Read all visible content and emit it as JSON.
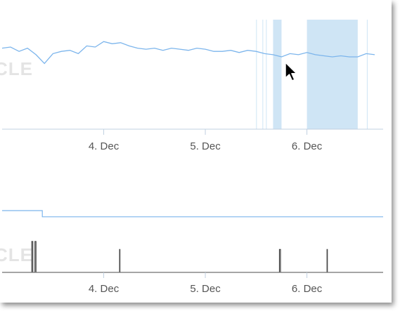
{
  "chart_data": [
    {
      "type": "line",
      "title": "",
      "xlabel": "",
      "ylabel": "",
      "x_tick_labels": [
        "4. Dec",
        "5. Dec",
        "6. Dec"
      ],
      "x_ticks_date": [
        "2023-12-04",
        "2023-12-05",
        "2023-12-06"
      ],
      "xlim_date": [
        "2023-12-03",
        "2023-12-06T18:00"
      ],
      "ylim": [
        0,
        100
      ],
      "grid": false,
      "line_color": "#7cb5ec",
      "band_color": "#cfe5f5",
      "watermark": "CLE",
      "highlight_bands": [
        [
          "2023-12-05T12:00",
          "2023-12-05T12:05"
        ],
        [
          "2023-12-05T13:30",
          "2023-12-05T13:35"
        ],
        [
          "2023-12-05T14:20",
          "2023-12-05T14:25"
        ],
        [
          "2023-12-05T16:00",
          "2023-12-05T18:00"
        ],
        [
          "2023-12-06T00:00",
          "2023-12-06T12:00"
        ],
        [
          "2023-12-06T14:10",
          "2023-12-06T14:15"
        ]
      ],
      "series": [
        {
          "values": [
            [
              "2023-12-03T00:00",
              74
            ],
            [
              "2023-12-03T02:00",
              75
            ],
            [
              "2023-12-03T04:00",
              71
            ],
            [
              "2023-12-03T06:00",
              74
            ],
            [
              "2023-12-03T08:00",
              68
            ],
            [
              "2023-12-03T10:00",
              60
            ],
            [
              "2023-12-03T12:00",
              69
            ],
            [
              "2023-12-03T14:00",
              71
            ],
            [
              "2023-12-03T16:00",
              72
            ],
            [
              "2023-12-03T18:00",
              69
            ],
            [
              "2023-12-03T20:00",
              76
            ],
            [
              "2023-12-03T22:00",
              75
            ],
            [
              "2023-12-04T00:00",
              80
            ],
            [
              "2023-12-04T02:00",
              78
            ],
            [
              "2023-12-04T04:00",
              79
            ],
            [
              "2023-12-04T06:00",
              76
            ],
            [
              "2023-12-04T08:00",
              74
            ],
            [
              "2023-12-04T10:00",
              73
            ],
            [
              "2023-12-04T12:00",
              74
            ],
            [
              "2023-12-04T14:00",
              72
            ],
            [
              "2023-12-04T16:00",
              74
            ],
            [
              "2023-12-04T18:00",
              73
            ],
            [
              "2023-12-04T20:00",
              72
            ],
            [
              "2023-12-04T22:00",
              74
            ],
            [
              "2023-12-05T00:00",
              73
            ],
            [
              "2023-12-05T02:00",
              71
            ],
            [
              "2023-12-05T04:00",
              71
            ],
            [
              "2023-12-05T06:00",
              72
            ],
            [
              "2023-12-05T08:00",
              70
            ],
            [
              "2023-12-05T10:00",
              72
            ],
            [
              "2023-12-05T12:00",
              71
            ],
            [
              "2023-12-05T14:00",
              69
            ],
            [
              "2023-12-05T16:00",
              68
            ],
            [
              "2023-12-05T18:00",
              66
            ],
            [
              "2023-12-05T20:00",
              69
            ],
            [
              "2023-12-05T22:00",
              68
            ],
            [
              "2023-12-06T00:00",
              70
            ],
            [
              "2023-12-06T02:00",
              68
            ],
            [
              "2023-12-06T04:00",
              67
            ],
            [
              "2023-12-06T06:00",
              66
            ],
            [
              "2023-12-06T08:00",
              67
            ],
            [
              "2023-12-06T10:00",
              66
            ],
            [
              "2023-12-06T12:00",
              66
            ],
            [
              "2023-12-06T14:00",
              69
            ],
            [
              "2023-12-06T16:00",
              68
            ]
          ]
        }
      ]
    },
    {
      "type": "line",
      "title": "",
      "xlabel": "",
      "ylabel": "",
      "x_tick_labels": [
        "4. Dec",
        "5. Dec",
        "6. Dec"
      ],
      "x_ticks_date": [
        "2023-12-04",
        "2023-12-05",
        "2023-12-06"
      ],
      "xlim_date": [
        "2023-12-03",
        "2023-12-06T18:00"
      ],
      "ylim": [
        0,
        1
      ],
      "grid": false,
      "watermark": "CLE",
      "series": [
        {
          "color": "#7cb5ec",
          "values": [
            [
              "2023-12-03T00:00",
              1
            ],
            [
              "2023-12-03T09:30",
              1
            ],
            [
              "2023-12-03T09:30",
              0.9
            ],
            [
              "2023-12-06T18:00",
              0.9
            ]
          ]
        },
        {
          "color": "#444444",
          "values": [
            [
              "2023-12-03T00:00",
              0
            ],
            [
              "2023-12-03T07:00",
              0
            ],
            [
              "2023-12-03T07:00",
              0.5
            ],
            [
              "2023-12-03T07:15",
              0.5
            ],
            [
              "2023-12-03T07:15",
              0
            ],
            [
              "2023-12-03T07:45",
              0
            ],
            [
              "2023-12-03T07:45",
              0.5
            ],
            [
              "2023-12-03T08:00",
              0.5
            ],
            [
              "2023-12-03T08:00",
              0
            ],
            [
              "2023-12-04T03:45",
              0
            ],
            [
              "2023-12-04T03:45",
              0.37
            ],
            [
              "2023-12-04T03:50",
              0.37
            ],
            [
              "2023-12-04T03:50",
              0
            ],
            [
              "2023-12-05T17:30",
              0
            ],
            [
              "2023-12-05T17:30",
              0.37
            ],
            [
              "2023-12-05T17:45",
              0.37
            ],
            [
              "2023-12-05T17:45",
              0
            ],
            [
              "2023-12-06T04:45",
              0
            ],
            [
              "2023-12-06T04:45",
              0.37
            ],
            [
              "2023-12-06T04:50",
              0.37
            ],
            [
              "2023-12-06T04:50",
              0
            ],
            [
              "2023-12-06T18:00",
              0
            ]
          ]
        }
      ]
    }
  ]
}
